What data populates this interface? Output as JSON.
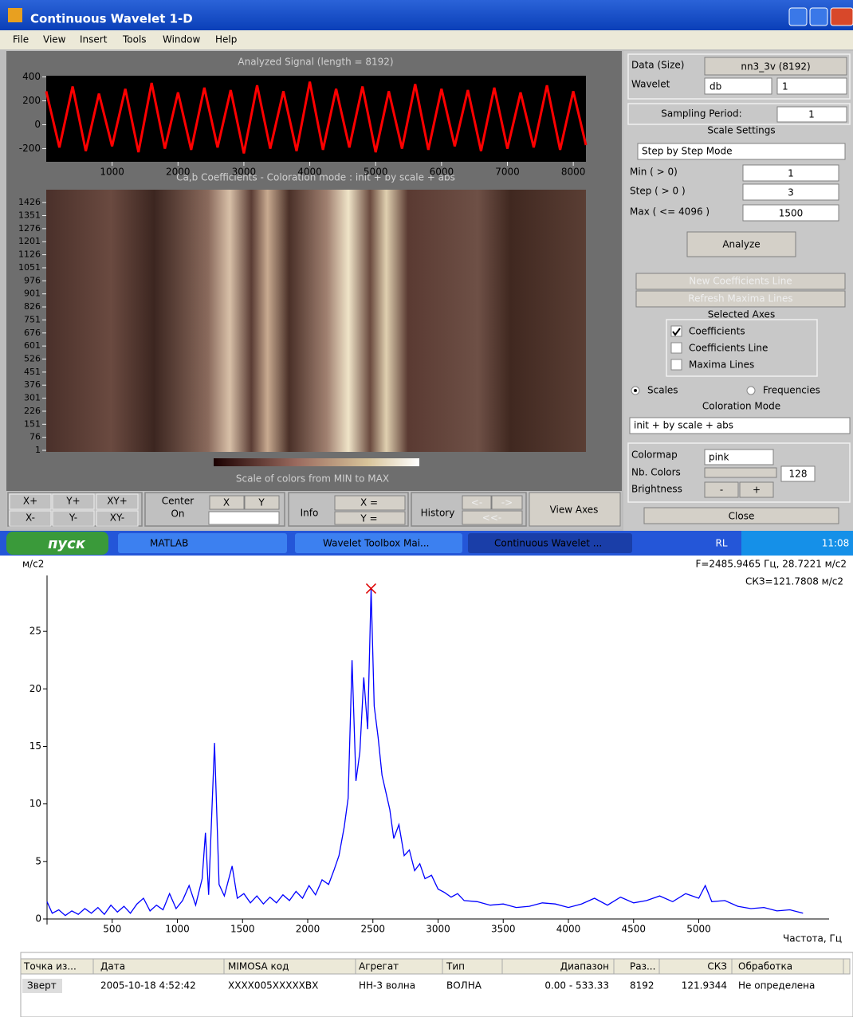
{
  "window": {
    "title": "Continuous Wavelet 1-D",
    "menu": [
      "File",
      "View",
      "Insert",
      "Tools",
      "Window",
      "Help"
    ]
  },
  "signal_plot": {
    "type": "line",
    "title": "Analyzed Signal  (length = 8192)",
    "color": "#ff0000",
    "xlim": [
      0,
      8192
    ],
    "ylim": [
      -310,
      410
    ],
    "xticks": [
      1000,
      2000,
      3000,
      4000,
      5000,
      6000,
      7000,
      8000
    ],
    "yticks": [
      400,
      200,
      0,
      -200
    ],
    "x": [
      0,
      200,
      400,
      600,
      800,
      1000,
      1200,
      1400,
      1600,
      1800,
      2000,
      2200,
      2400,
      2600,
      2800,
      3000,
      3200,
      3400,
      3600,
      3800,
      4000,
      4200,
      4400,
      4600,
      4800,
      5000,
      5200,
      5400,
      5600,
      5800,
      6000,
      6200,
      6400,
      6600,
      6800,
      7000,
      7200,
      7400,
      7600,
      7800,
      8000,
      8192
    ],
    "values": [
      280,
      -190,
      320,
      -220,
      260,
      -180,
      300,
      -230,
      350,
      -200,
      270,
      -210,
      310,
      -190,
      290,
      -240,
      330,
      -200,
      280,
      -220,
      360,
      -210,
      300,
      -190,
      320,
      -230,
      280,
      -200,
      340,
      -210,
      300,
      -180,
      290,
      -220,
      310,
      -200,
      270,
      -190,
      330,
      -210,
      280,
      -170
    ]
  },
  "coef_plot": {
    "title": "Ca,b Coefficients - Coloration mode : init + by scale + abs",
    "ylim": [
      -8,
      1500
    ],
    "yticks": [
      1426,
      1351,
      1276,
      1201,
      1126,
      1051,
      976,
      901,
      826,
      751,
      676,
      601,
      526,
      451,
      376,
      301,
      226,
      151,
      76,
      1
    ],
    "colorbar_label": "Scale of colors from MIN to MAX"
  },
  "panel": {
    "data_label": "Data  (Size)",
    "data_value": "nn3_3v  (8192)",
    "wavelet_label": "Wavelet",
    "wavelet_family": "db",
    "wavelet_order": "1",
    "sampling_label": "Sampling Period:",
    "sampling_value": "1",
    "scale_settings": "Scale Settings",
    "mode": "Step by Step Mode",
    "min_label": "Min  ( > 0)",
    "min_value": "1",
    "step_label": "Step ( > 0 )",
    "step_value": "3",
    "max_label": "Max  ( <= 4096 )",
    "max_value": "1500",
    "analyze": "Analyze",
    "new_coef": "New Coefficients Line",
    "refresh": "Refresh Maxima Lines",
    "selected_axes": "Selected Axes",
    "checks": [
      "Coefficients",
      "Coefficients Line",
      "Maxima Lines"
    ],
    "scales": "Scales",
    "frequencies": "Frequencies",
    "coloration_title": "Coloration Mode",
    "coloration": "init + by scale + abs",
    "colormap_label": "Colormap",
    "colormap": "pink",
    "nb_colors_label": "Nb. Colors",
    "nb_colors": "128",
    "brightness_label": "Brightness",
    "minus": "-",
    "plus": "+",
    "close": "Close"
  },
  "toolbar": {
    "zoom": [
      "X+",
      "Y+",
      "XY+",
      "X-",
      "Y-",
      "XY-"
    ],
    "center": "Center",
    "on": "On",
    "x": "X",
    "y": "Y",
    "info": "Info",
    "x_eq": "X =",
    "y_eq": "Y =",
    "history": "History",
    "back": "<-",
    "forward": "->",
    "back_all": "<<-",
    "view_axes": "View Axes"
  },
  "taskbar": {
    "start": "пуск",
    "items": [
      "MATLAB",
      "Wavelet Toolbox Mai...",
      "Continuous Wavelet ..."
    ],
    "lang": "RL",
    "time": "11:08"
  },
  "spectrum": {
    "type": "line",
    "y_label": "м/с2",
    "x_label": "Частота, Гц",
    "cursor": "F=2485.9465 Гц,  28.7221 м/с2",
    "rms": "СКЗ=121.7808 м/с2",
    "color": "#0000ff",
    "marker_x": 2485.9465,
    "marker_y": 28.7221,
    "xlim": [
      0,
      6000
    ],
    "ylim": [
      0,
      30
    ],
    "xticks": [
      500,
      1000,
      1500,
      2000,
      2500,
      3000,
      3500,
      4000,
      4500,
      5000
    ],
    "yticks": [
      0,
      5,
      10,
      15,
      20,
      25
    ],
    "x": [
      0,
      40,
      90,
      140,
      190,
      240,
      290,
      340,
      390,
      440,
      490,
      540,
      590,
      640,
      690,
      740,
      790,
      840,
      890,
      940,
      990,
      1040,
      1090,
      1140,
      1190,
      1215,
      1240,
      1285,
      1320,
      1360,
      1420,
      1460,
      1510,
      1560,
      1610,
      1660,
      1710,
      1760,
      1810,
      1860,
      1910,
      1960,
      2010,
      2060,
      2110,
      2160,
      2200,
      2240,
      2280,
      2310,
      2340,
      2370,
      2400,
      2430,
      2460,
      2486,
      2510,
      2540,
      2570,
      2600,
      2630,
      2660,
      2700,
      2740,
      2780,
      2820,
      2860,
      2900,
      2950,
      3000,
      3050,
      3100,
      3150,
      3200,
      3300,
      3400,
      3500,
      3600,
      3700,
      3800,
      3900,
      4000,
      4100,
      4200,
      4300,
      4400,
      4500,
      4600,
      4700,
      4800,
      4900,
      5000,
      5050,
      5100,
      5200,
      5300,
      5400,
      5500,
      5600,
      5700,
      5800
    ],
    "values": [
      1.5,
      0.5,
      0.8,
      0.3,
      0.7,
      0.4,
      0.9,
      0.5,
      1.0,
      0.4,
      1.2,
      0.6,
      1.1,
      0.5,
      1.3,
      1.8,
      0.7,
      1.2,
      0.8,
      2.2,
      0.9,
      1.6,
      2.9,
      1.2,
      3.5,
      7.5,
      2.1,
      15.3,
      3.0,
      2.0,
      4.6,
      1.8,
      2.2,
      1.4,
      2.0,
      1.3,
      1.9,
      1.4,
      2.1,
      1.6,
      2.4,
      1.8,
      2.9,
      2.1,
      3.4,
      3.0,
      4.2,
      5.5,
      8.0,
      10.5,
      22.5,
      12.0,
      14.5,
      21.0,
      16.5,
      28.7,
      18.5,
      15.8,
      12.5,
      11.0,
      9.5,
      7.0,
      8.2,
      5.5,
      6.0,
      4.2,
      4.8,
      3.5,
      3.8,
      2.6,
      2.3,
      1.9,
      2.2,
      1.6,
      1.5,
      1.2,
      1.3,
      1.0,
      1.1,
      1.4,
      1.3,
      1.0,
      1.3,
      1.8,
      1.2,
      1.9,
      1.4,
      1.6,
      2.0,
      1.5,
      2.2,
      1.8,
      2.9,
      1.5,
      1.6,
      1.1,
      0.9,
      1.0,
      0.7,
      0.8,
      0.5
    ]
  },
  "table": {
    "columns": [
      "Точка из...",
      "Дата",
      "MIMOSA код",
      "Агрегат",
      "Тип",
      "Диапазон",
      "Раз...",
      "СКЗ",
      "Обработка"
    ],
    "rows": [
      [
        "Зверт",
        "2005-10-18 4:52:42",
        "XXXX005XXXXXBX",
        "НН-3 волна",
        "ВОЛНА",
        "0.00 -  533.33",
        "8192",
        "121.9344",
        "Не определена"
      ]
    ]
  }
}
